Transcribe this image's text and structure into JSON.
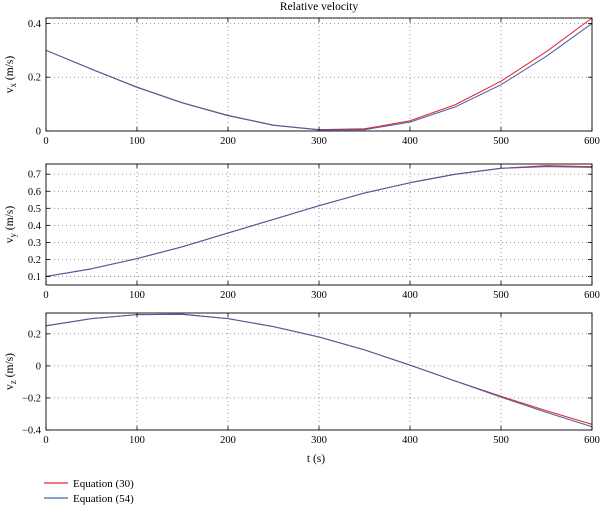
{
  "chart_data": {
    "type": "line",
    "title": "Relative velocity",
    "xlabel": "t (s)",
    "xlim": [
      0,
      600
    ],
    "xticks": [
      0,
      100,
      200,
      300,
      400,
      500,
      600
    ],
    "xtick_labels": [
      "0",
      "100",
      "200",
      "300",
      "400",
      "500",
      "600"
    ],
    "grid": true,
    "legend": {
      "placement": "bottom-left",
      "entries": [
        {
          "name": "Equation (30)",
          "color": "#e8272b"
        },
        {
          "name": "Equation (54)",
          "color": "#4a5ea8"
        }
      ]
    },
    "x": [
      0,
      50,
      100,
      150,
      200,
      250,
      300,
      350,
      400,
      450,
      500,
      550,
      600
    ],
    "panels": [
      {
        "ylabel_main": "v",
        "ylabel_sub": "x",
        "ylabel_unit": " (m/s)",
        "ylim": [
          0,
          0.42
        ],
        "yticks": [
          0,
          0.2,
          0.4
        ],
        "ytick_labels": [
          "0",
          "0.2",
          "0.4"
        ],
        "series": [
          {
            "name": "Equation (30)",
            "color": "#e8272b",
            "values": [
              0.3,
              0.23,
              0.163,
              0.105,
              0.058,
              0.022,
              0.005,
              0.008,
              0.038,
              0.098,
              0.185,
              0.295,
              0.42
            ]
          },
          {
            "name": "Equation (54)",
            "color": "#4a5ea8",
            "values": [
              0.3,
              0.23,
              0.162,
              0.104,
              0.057,
              0.021,
              0.004,
              0.005,
              0.033,
              0.09,
              0.172,
              0.278,
              0.4
            ]
          }
        ]
      },
      {
        "ylabel_main": "v",
        "ylabel_sub": "y",
        "ylabel_unit": " (m/s)",
        "ylim": [
          0.05,
          0.76
        ],
        "yticks": [
          0.1,
          0.2,
          0.3,
          0.4,
          0.5,
          0.6,
          0.7
        ],
        "ytick_labels": [
          "0.1",
          "0.2",
          "0.3",
          "0.4",
          "0.5",
          "0.6",
          "0.7"
        ],
        "series": [
          {
            "name": "Equation (30)",
            "color": "#e8272b",
            "values": [
              0.1,
              0.145,
              0.205,
              0.275,
              0.355,
              0.435,
              0.515,
              0.59,
              0.65,
              0.7,
              0.735,
              0.75,
              0.745
            ]
          },
          {
            "name": "Equation (54)",
            "color": "#4a5ea8",
            "values": [
              0.1,
              0.145,
              0.205,
              0.275,
              0.355,
              0.435,
              0.515,
              0.59,
              0.65,
              0.7,
              0.735,
              0.745,
              0.74
            ]
          }
        ]
      },
      {
        "ylabel_main": "v",
        "ylabel_sub": "z",
        "ylabel_unit": " (m/s)",
        "ylim": [
          -0.4,
          0.33
        ],
        "yticks": [
          -0.4,
          -0.2,
          0,
          0.2
        ],
        "ytick_labels": [
          "−0.4",
          "−0.2",
          "0",
          "0.2"
        ],
        "series": [
          {
            "name": "Equation (30)",
            "color": "#e8272b",
            "values": [
              0.25,
              0.295,
              0.32,
              0.322,
              0.295,
              0.245,
              0.18,
              0.1,
              0.005,
              -0.095,
              -0.19,
              -0.28,
              -0.365
            ]
          },
          {
            "name": "Equation (54)",
            "color": "#4a5ea8",
            "values": [
              0.25,
              0.295,
              0.32,
              0.322,
              0.295,
              0.245,
              0.18,
              0.1,
              0.005,
              -0.095,
              -0.195,
              -0.29,
              -0.38
            ]
          }
        ]
      }
    ]
  }
}
